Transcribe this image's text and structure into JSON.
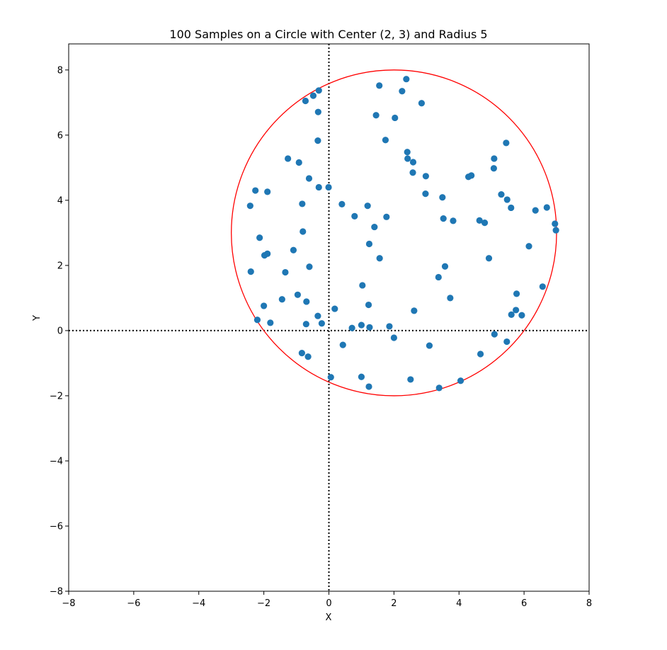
{
  "chart_data": {
    "type": "scatter",
    "title": "100 Samples on a Circle with Center (2, 3) and Radius 5",
    "xlabel": "X",
    "ylabel": "Y",
    "xlim": [
      -8,
      8
    ],
    "ylim": [
      -8,
      8.8
    ],
    "xticks": [
      -8,
      -6,
      -4,
      -2,
      0,
      2,
      4,
      6,
      8
    ],
    "yticks": [
      -8,
      -6,
      -4,
      -2,
      0,
      2,
      4,
      6,
      8
    ],
    "grid": false,
    "reference_lines": {
      "x": 0,
      "y": 0,
      "style": "dotted",
      "color": "#000000"
    },
    "circle": {
      "center": [
        2,
        3
      ],
      "radius": 5,
      "color": "#ff0000"
    },
    "series": [
      {
        "color": "#1f77b4",
        "points": [
          [
            2.38,
            7.72
          ],
          [
            1.55,
            7.52
          ],
          [
            2.25,
            7.35
          ],
          [
            -0.31,
            7.37
          ],
          [
            -0.48,
            7.21
          ],
          [
            -0.72,
            7.05
          ],
          [
            2.85,
            6.98
          ],
          [
            -0.33,
            6.71
          ],
          [
            1.45,
            6.61
          ],
          [
            2.03,
            6.53
          ],
          [
            1.74,
            5.85
          ],
          [
            -0.34,
            5.83
          ],
          [
            5.45,
            5.76
          ],
          [
            2.41,
            5.48
          ],
          [
            2.42,
            5.28
          ],
          [
            5.08,
            5.28
          ],
          [
            -1.26,
            5.28
          ],
          [
            -0.92,
            5.16
          ],
          [
            2.59,
            5.17
          ],
          [
            5.07,
            4.98
          ],
          [
            2.58,
            4.85
          ],
          [
            2.98,
            4.74
          ],
          [
            4.38,
            4.76
          ],
          [
            4.29,
            4.72
          ],
          [
            -0.61,
            4.67
          ],
          [
            -0.31,
            4.4
          ],
          [
            -0.01,
            4.4
          ],
          [
            -2.26,
            4.3
          ],
          [
            -1.89,
            4.26
          ],
          [
            2.97,
            4.2
          ],
          [
            5.3,
            4.18
          ],
          [
            3.49,
            4.09
          ],
          [
            5.48,
            4.02
          ],
          [
            0.4,
            3.88
          ],
          [
            1.19,
            3.83
          ],
          [
            -2.42,
            3.83
          ],
          [
            5.6,
            3.77
          ],
          [
            -0.82,
            3.89
          ],
          [
            6.35,
            3.69
          ],
          [
            6.7,
            3.78
          ],
          [
            0.79,
            3.51
          ],
          [
            1.77,
            3.49
          ],
          [
            3.52,
            3.44
          ],
          [
            3.82,
            3.37
          ],
          [
            4.63,
            3.38
          ],
          [
            4.79,
            3.31
          ],
          [
            6.95,
            3.28
          ],
          [
            1.4,
            3.18
          ],
          [
            -0.8,
            3.04
          ],
          [
            6.98,
            3.08
          ],
          [
            -2.13,
            2.85
          ],
          [
            1.24,
            2.66
          ],
          [
            6.15,
            2.59
          ],
          [
            -1.09,
            2.47
          ],
          [
            -1.89,
            2.36
          ],
          [
            -1.98,
            2.31
          ],
          [
            1.56,
            2.22
          ],
          [
            4.92,
            2.22
          ],
          [
            3.57,
            1.97
          ],
          [
            -0.6,
            1.96
          ],
          [
            -2.4,
            1.81
          ],
          [
            -1.34,
            1.79
          ],
          [
            3.37,
            1.64
          ],
          [
            1.03,
            1.39
          ],
          [
            6.57,
            1.35
          ],
          [
            5.77,
            1.13
          ],
          [
            -0.96,
            1.1
          ],
          [
            3.73,
            1.0
          ],
          [
            -1.44,
            0.96
          ],
          [
            -0.69,
            0.89
          ],
          [
            1.22,
            0.79
          ],
          [
            -2.0,
            0.76
          ],
          [
            0.18,
            0.67
          ],
          [
            5.75,
            0.63
          ],
          [
            2.62,
            0.61
          ],
          [
            5.61,
            0.49
          ],
          [
            5.93,
            0.47
          ],
          [
            -0.34,
            0.45
          ],
          [
            -2.2,
            0.33
          ],
          [
            -1.8,
            0.24
          ],
          [
            -0.7,
            0.2
          ],
          [
            -0.22,
            0.22
          ],
          [
            1.0,
            0.17
          ],
          [
            1.86,
            0.13
          ],
          [
            1.25,
            0.1
          ],
          [
            0.71,
            0.08
          ],
          [
            5.09,
            -0.11
          ],
          [
            2.0,
            -0.22
          ],
          [
            5.47,
            -0.34
          ],
          [
            0.43,
            -0.44
          ],
          [
            3.09,
            -0.46
          ],
          [
            -0.83,
            -0.69
          ],
          [
            4.66,
            -0.72
          ],
          [
            -0.64,
            -0.8
          ],
          [
            0.06,
            -1.43
          ],
          [
            1.0,
            -1.42
          ],
          [
            2.51,
            -1.5
          ],
          [
            4.05,
            -1.54
          ],
          [
            1.23,
            -1.72
          ],
          [
            3.39,
            -1.76
          ]
        ]
      }
    ]
  }
}
